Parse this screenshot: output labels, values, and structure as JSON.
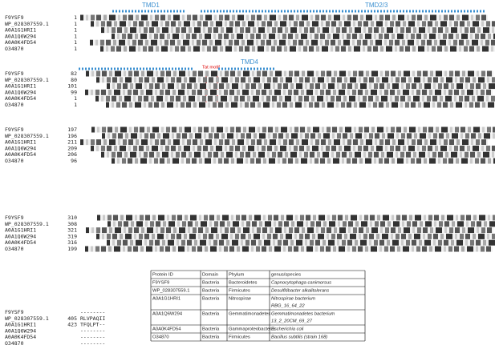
{
  "annotations": {
    "tmd1": "TMD1",
    "tmd23": "TMD2/3",
    "tat_motif": "Tat motif",
    "tmd4": "TMD4"
  },
  "alignment": {
    "names": [
      "F9YSF9",
      "WP_028307559.1",
      "A0A1G1HRI1",
      "A0A1Q6W294",
      "A0A0K4FD54",
      "O34870"
    ],
    "blocks": [
      {
        "starts": [
          "1",
          "1",
          "1",
          "1",
          "1",
          "1"
        ]
      },
      {
        "starts": [
          "82",
          "80",
          "101",
          "99",
          "1",
          "1"
        ]
      },
      {
        "starts": [
          "197",
          "196",
          "211",
          "209",
          "206",
          "96"
        ]
      },
      {
        "starts": [
          "310",
          "308",
          "321",
          "319",
          "316",
          "199"
        ]
      },
      {
        "starts": [
          "",
          "405",
          "423",
          "",
          "",
          ""
        ],
        "sequences": [
          "--------",
          "RLVPAQII",
          "TFQLPT--",
          "--------",
          "--------",
          "--------"
        ]
      }
    ]
  },
  "table": {
    "header": [
      "Protein ID",
      "Domain",
      "Phylum",
      "genus/species"
    ],
    "rows": [
      [
        "F9YSF9",
        "Bacteria",
        "Bacteroidetes",
        [
          "Capnocytophaga canimorsus"
        ]
      ],
      [
        "WP_028307559.1",
        "Bacteria",
        "Firmicutes",
        [
          "Desulfitibacter alkalitolerans"
        ]
      ],
      [
        "A0A1G1HRI1",
        "Bacteria",
        "Nitrospirae",
        [
          "Nitrospirae bacterium",
          "RBG_16_64_22"
        ]
      ],
      [
        "A0A1Q6W294",
        "Bacteria",
        "Gemmatimonadetes",
        [
          "Gemmatimonadetes bacterium",
          "13_2_20CM_69_27"
        ]
      ],
      [
        "A0A0K4FD54",
        "Bacteria",
        "Gammaproteobacteria",
        [
          "Escherichia coli"
        ]
      ],
      [
        "O34870",
        "Bacteria",
        "Firmicutes",
        [
          "Bacillus subtilis (strain 168)"
        ]
      ]
    ]
  }
}
